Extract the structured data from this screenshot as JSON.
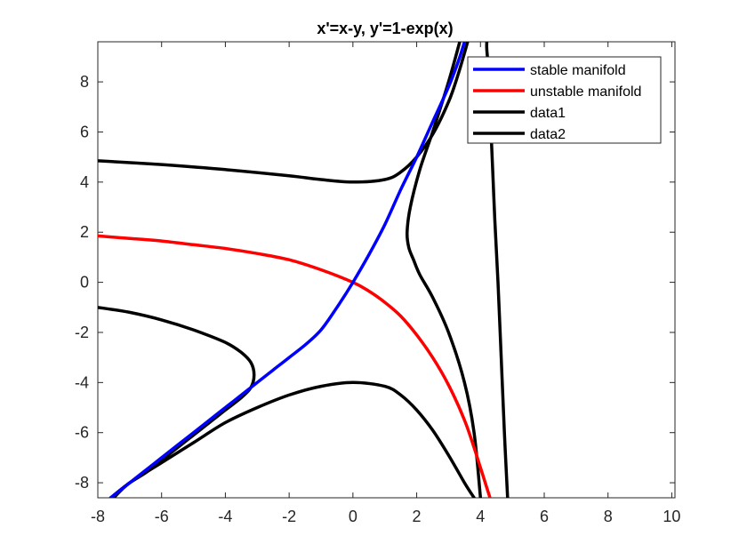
{
  "chart_data": {
    "type": "line",
    "title": "x'=x-y, y'=1-exp(x)",
    "xlabel": "",
    "ylabel": "",
    "xlim": [
      -8,
      10.1
    ],
    "ylim": [
      -8.6,
      9.6
    ],
    "xticks": [
      -8,
      -6,
      -4,
      -2,
      0,
      2,
      4,
      6,
      8,
      10
    ],
    "yticks": [
      -8,
      -6,
      -4,
      -2,
      0,
      2,
      4,
      6,
      8
    ],
    "grid": false,
    "legend_position": "top-right",
    "series": [
      {
        "name": "stable manifold",
        "color": "#0000ff",
        "x": [
          -7.6,
          -7.0,
          -6.5,
          -6.0,
          -5.5,
          -5.0,
          -4.5,
          -4.0,
          -3.5,
          -3.0,
          -2.5,
          -2.0,
          -1.5,
          -1.0,
          -0.5,
          0,
          0.5,
          1.0,
          1.5,
          2.0,
          2.5,
          3.0,
          3.3,
          3.5
        ],
        "y": [
          -8.6,
          -8.0,
          -7.5,
          -7.0,
          -6.5,
          -6.0,
          -5.5,
          -5.0,
          -4.5,
          -4.0,
          -3.5,
          -3.0,
          -2.5,
          -1.9,
          -1.0,
          0,
          1.1,
          2.3,
          3.7,
          5.0,
          6.4,
          7.8,
          8.8,
          9.6
        ]
      },
      {
        "name": "unstable manifold",
        "color": "#ff0000",
        "x": [
          -8,
          -7,
          -6,
          -5,
          -4,
          -3,
          -2,
          -1,
          0,
          0.5,
          1.0,
          1.5,
          2.0,
          2.5,
          3.0,
          3.5,
          3.8,
          4.0,
          4.2,
          4.3
        ],
        "y": [
          1.85,
          1.75,
          1.65,
          1.5,
          1.35,
          1.15,
          0.9,
          0.5,
          0,
          -0.35,
          -0.8,
          -1.35,
          -2.1,
          -3.0,
          -4.1,
          -5.5,
          -6.6,
          -7.4,
          -8.2,
          -8.6
        ]
      },
      {
        "name": "data1",
        "color": "#000000",
        "x": [
          -8,
          -6,
          -4,
          -2,
          -1,
          0,
          1,
          1.5,
          2.0,
          2.5,
          3.0,
          3.3,
          3.6
        ],
        "y": [
          4.85,
          4.7,
          4.5,
          4.25,
          4.1,
          4.0,
          4.1,
          4.4,
          5.0,
          5.9,
          7.2,
          8.3,
          9.6
        ]
      },
      {
        "name": "data2",
        "color": "#000000",
        "x": [
          4.85,
          4.75,
          4.65,
          4.55,
          4.45,
          4.4,
          4.35,
          4.3,
          4.25,
          4.2,
          4.2
        ],
        "y": [
          -8.6,
          -6.0,
          -3.0,
          0,
          2.5,
          4.0,
          5.5,
          7.0,
          8.5,
          9.3,
          9.6
        ]
      },
      {
        "name": "",
        "color": "#000000",
        "x": [
          -8,
          -7,
          -6,
          -5,
          -4,
          -3.5,
          -3.2,
          -3.1,
          -3.2,
          -3.5,
          -4.0,
          -4.5,
          -5.0,
          -5.5,
          -6.0,
          -6.5,
          -7.0,
          -7.5
        ],
        "y": [
          -1.0,
          -1.2,
          -1.5,
          -1.9,
          -2.4,
          -2.8,
          -3.2,
          -3.7,
          -4.2,
          -4.6,
          -5.1,
          -5.6,
          -6.1,
          -6.6,
          -7.1,
          -7.6,
          -8.0,
          -8.5
        ]
      },
      {
        "name": "",
        "color": "#000000",
        "x": [
          -7.5,
          -7.0,
          -6.0,
          -5.0,
          -4.0,
          -3.0,
          -2.0,
          -1.0,
          0,
          1.0,
          1.5,
          2.0,
          2.5,
          3.0,
          3.5,
          3.8
        ],
        "y": [
          -8.6,
          -8.0,
          -7.2,
          -6.4,
          -5.6,
          -5.0,
          -4.5,
          -4.15,
          -4.0,
          -4.15,
          -4.5,
          -5.1,
          -5.9,
          -6.9,
          -8.0,
          -8.6
        ]
      },
      {
        "name": "",
        "color": "#000000",
        "x": [
          3.35,
          3.0,
          2.5,
          2.1,
          1.8,
          1.7,
          1.75,
          1.9,
          2.1,
          2.5,
          3.0,
          3.5,
          3.8,
          4.0
        ],
        "y": [
          9.6,
          8.0,
          6.0,
          4.5,
          3.0,
          2.0,
          1.4,
          0.9,
          0.3,
          -0.6,
          -2.0,
          -4.0,
          -6.0,
          -8.6
        ]
      }
    ]
  }
}
